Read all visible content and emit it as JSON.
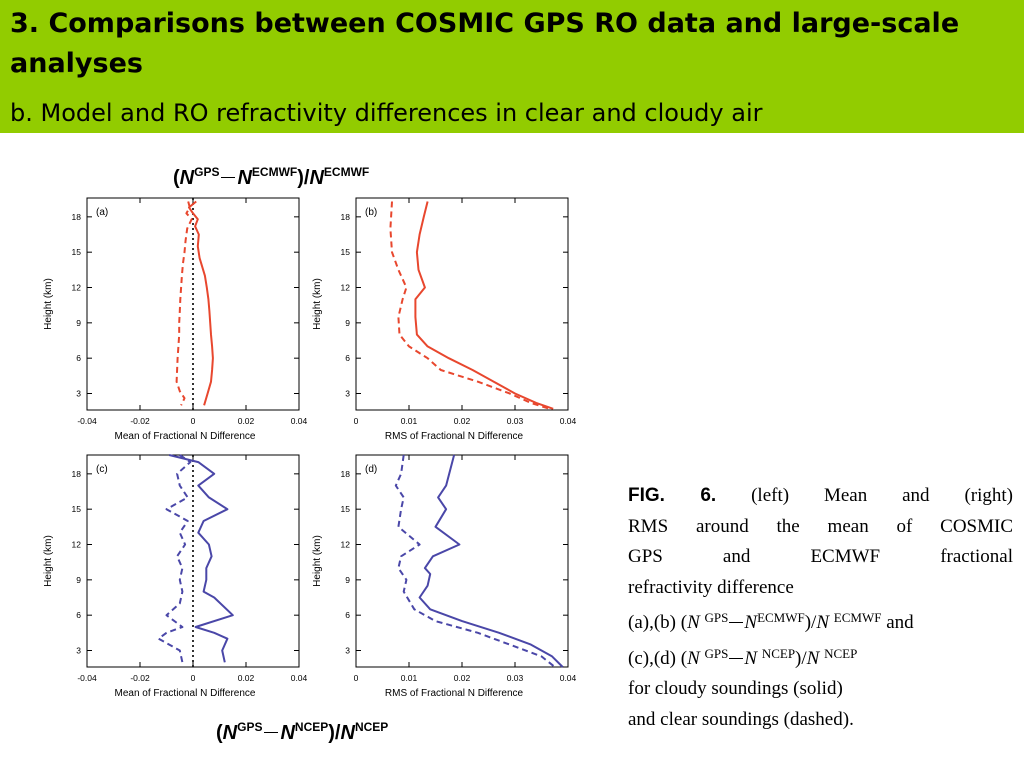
{
  "banner": {
    "title": "3. Comparisons between COSMIC GPS RO data and large-scale analyses",
    "subtitle": "b. Model and RO refractivity differences in clear and cloudy air"
  },
  "equation_top": {
    "n": "N",
    "gps": "GPS",
    "ref": "ECMWF"
  },
  "equation_bottom": {
    "n": "N",
    "gps": "GPS",
    "ref": "NCEP"
  },
  "caption": {
    "fig_label": "FIG. 6.",
    "line1_rest": "(left) Mean and (right)",
    "line2": "RMS around the mean of COSMIC",
    "line3": "GPS and ECMWF fractional",
    "line4": "refractivity difference",
    "ab": "(a),(b) (",
    "cd": "(c),(d) (",
    "n": "N",
    "gps": "GPS",
    "ecmwf": "ECMWF",
    "ncep": "NCEP",
    "and": "and",
    "line7": "for cloudy soundings (solid)",
    "line8": "and clear soundings (dashed)."
  },
  "chart_data": [
    {
      "panel": "(a)",
      "type": "line",
      "xlabel": "Mean of Fractional N Difference",
      "ylabel": "Height (km)",
      "xlim": [
        -0.04,
        0.04
      ],
      "ylim": [
        1.6,
        19.6
      ],
      "xticks": [
        -0.04,
        -0.02,
        0,
        0.02,
        0.04
      ],
      "xtick_labels": [
        "-0.04",
        "-0.02",
        "0",
        "0.02",
        "0.04"
      ],
      "yticks": [
        3,
        6,
        9,
        12,
        15,
        18
      ],
      "ytick_labels": [
        "3",
        "6",
        "9",
        "12",
        "15",
        "18"
      ],
      "zero_line": true,
      "color": "#e8472e",
      "series": [
        {
          "style": "solid",
          "points": [
            [
              0.0012,
              19.3
            ],
            [
              -0.0015,
              18.8
            ],
            [
              0.0,
              18.3
            ],
            [
              0.0018,
              17.8
            ],
            [
              0.0008,
              17.2
            ],
            [
              0.0022,
              16.5
            ],
            [
              0.0018,
              15.5
            ],
            [
              0.0025,
              14.5
            ],
            [
              0.0045,
              13.0
            ],
            [
              0.0052,
              12.0
            ],
            [
              0.0058,
              11.0
            ],
            [
              0.0062,
              10.0
            ],
            [
              0.0065,
              9.0
            ],
            [
              0.0068,
              8.0
            ],
            [
              0.0072,
              7.0
            ],
            [
              0.0075,
              6.0
            ],
            [
              0.0072,
              5.0
            ],
            [
              0.0068,
              4.0
            ],
            [
              0.0055,
              3.0
            ],
            [
              0.0042,
              2.0
            ]
          ]
        },
        {
          "style": "dashed",
          "points": [
            [
              -0.0018,
              19.3
            ],
            [
              -0.0012,
              18.8
            ],
            [
              -0.0025,
              18.3
            ],
            [
              -0.0005,
              17.8
            ],
            [
              -0.0022,
              17.0
            ],
            [
              -0.0028,
              16.0
            ],
            [
              -0.0032,
              15.0
            ],
            [
              -0.0038,
              14.0
            ],
            [
              -0.0042,
              13.0
            ],
            [
              -0.0045,
              12.0
            ],
            [
              -0.0048,
              11.0
            ],
            [
              -0.005,
              10.0
            ],
            [
              -0.0052,
              9.0
            ],
            [
              -0.0052,
              8.0
            ],
            [
              -0.0055,
              7.0
            ],
            [
              -0.0058,
              6.0
            ],
            [
              -0.006,
              5.0
            ],
            [
              -0.0062,
              4.0
            ],
            [
              -0.005,
              3.2
            ],
            [
              -0.0032,
              2.6
            ],
            [
              -0.0045,
              2.0
            ]
          ]
        }
      ]
    },
    {
      "panel": "(b)",
      "type": "line",
      "xlabel": "RMS of Fractional N Difference",
      "ylabel": "Height (km)",
      "xlim": [
        0,
        0.04
      ],
      "ylim": [
        1.6,
        19.6
      ],
      "xticks": [
        0,
        0.01,
        0.02,
        0.03,
        0.04
      ],
      "xtick_labels": [
        "0",
        "0.01",
        "0.02",
        "0.03",
        "0.04"
      ],
      "yticks": [
        3,
        6,
        9,
        12,
        15,
        18
      ],
      "ytick_labels": [
        "3",
        "6",
        "9",
        "12",
        "15",
        "18"
      ],
      "zero_line": false,
      "color": "#e8472e",
      "series": [
        {
          "style": "solid",
          "points": [
            [
              0.0135,
              19.3
            ],
            [
              0.0128,
              18.0
            ],
            [
              0.012,
              16.5
            ],
            [
              0.0115,
              15.0
            ],
            [
              0.0118,
              13.5
            ],
            [
              0.013,
              12.0
            ],
            [
              0.0112,
              11.0
            ],
            [
              0.0112,
              9.5
            ],
            [
              0.0115,
              8.0
            ],
            [
              0.0135,
              7.0
            ],
            [
              0.0175,
              6.0
            ],
            [
              0.022,
              5.0
            ],
            [
              0.026,
              4.0
            ],
            [
              0.03,
              3.0
            ],
            [
              0.034,
              2.2
            ],
            [
              0.0372,
              1.7
            ]
          ]
        },
        {
          "style": "dashed",
          "points": [
            [
              0.0068,
              19.3
            ],
            [
              0.0065,
              17.0
            ],
            [
              0.0068,
              15.0
            ],
            [
              0.008,
              13.5
            ],
            [
              0.0095,
              12.0
            ],
            [
              0.0088,
              11.0
            ],
            [
              0.008,
              9.5
            ],
            [
              0.0082,
              8.0
            ],
            [
              0.01,
              7.0
            ],
            [
              0.0135,
              6.0
            ],
            [
              0.016,
              5.0
            ],
            [
              0.023,
              4.0
            ],
            [
              0.029,
              3.0
            ],
            [
              0.033,
              2.2
            ],
            [
              0.0365,
              1.7
            ]
          ]
        }
      ]
    },
    {
      "panel": "(c)",
      "type": "line",
      "xlabel": "Mean of Fractional N Difference",
      "ylabel": "Height (km)",
      "xlim": [
        -0.04,
        0.04
      ],
      "ylim": [
        1.6,
        19.6
      ],
      "xticks": [
        -0.04,
        -0.02,
        0,
        0.02,
        0.04
      ],
      "xtick_labels": [
        "-0.04",
        "-0.02",
        "0",
        "0.02",
        "0.04"
      ],
      "yticks": [
        3,
        6,
        9,
        12,
        15,
        18
      ],
      "ytick_labels": [
        "3",
        "6",
        "9",
        "12",
        "15",
        "18"
      ],
      "zero_line": true,
      "color": "#4a47a8",
      "series": [
        {
          "style": "solid",
          "points": [
            [
              -0.009,
              19.6
            ],
            [
              0.002,
              19.0
            ],
            [
              0.008,
              18.0
            ],
            [
              0.002,
              17.0
            ],
            [
              0.006,
              16.0
            ],
            [
              0.013,
              15.0
            ],
            [
              0.004,
              14.0
            ],
            [
              0.002,
              13.0
            ],
            [
              0.006,
              12.0
            ],
            [
              0.007,
              11.0
            ],
            [
              0.005,
              10.0
            ],
            [
              0.005,
              9.0
            ],
            [
              0.004,
              8.0
            ],
            [
              0.008,
              7.5
            ],
            [
              0.015,
              6.0
            ],
            [
              0.001,
              5.0
            ],
            [
              0.008,
              4.5
            ],
            [
              0.013,
              4.0
            ],
            [
              0.011,
              3.0
            ],
            [
              0.012,
              2.0
            ]
          ]
        },
        {
          "style": "dashed",
          "points": [
            [
              -0.005,
              19.6
            ],
            [
              -0.001,
              19.0
            ],
            [
              -0.006,
              18.0
            ],
            [
              -0.005,
              17.0
            ],
            [
              -0.002,
              16.0
            ],
            [
              -0.01,
              15.0
            ],
            [
              -0.002,
              14.0
            ],
            [
              -0.005,
              13.0
            ],
            [
              -0.003,
              12.0
            ],
            [
              -0.006,
              11.0
            ],
            [
              -0.004,
              10.0
            ],
            [
              -0.005,
              9.0
            ],
            [
              -0.004,
              8.0
            ],
            [
              -0.005,
              7.0
            ],
            [
              -0.01,
              6.0
            ],
            [
              -0.004,
              5.0
            ],
            [
              -0.01,
              4.5
            ],
            [
              -0.013,
              4.0
            ],
            [
              -0.005,
              3.0
            ],
            [
              -0.004,
              2.0
            ]
          ]
        }
      ]
    },
    {
      "panel": "(d)",
      "type": "line",
      "xlabel": "RMS of Fractional N Difference",
      "ylabel": "Height (km)",
      "xlim": [
        0,
        0.04
      ],
      "ylim": [
        1.6,
        19.6
      ],
      "xticks": [
        0,
        0.01,
        0.02,
        0.03,
        0.04
      ],
      "xtick_labels": [
        "0",
        "0.01",
        "0.02",
        "0.03",
        "0.04"
      ],
      "yticks": [
        3,
        6,
        9,
        12,
        15,
        18
      ],
      "ytick_labels": [
        "3",
        "6",
        "9",
        "12",
        "15",
        "18"
      ],
      "zero_line": false,
      "color": "#4a47a8",
      "series": [
        {
          "style": "solid",
          "points": [
            [
              0.0185,
              19.6
            ],
            [
              0.017,
              17.0
            ],
            [
              0.0155,
              16.0
            ],
            [
              0.017,
              15.0
            ],
            [
              0.015,
              13.5
            ],
            [
              0.0195,
              12.0
            ],
            [
              0.0145,
              11.0
            ],
            [
              0.013,
              10.0
            ],
            [
              0.014,
              9.5
            ],
            [
              0.0135,
              8.5
            ],
            [
              0.012,
              7.5
            ],
            [
              0.014,
              6.5
            ],
            [
              0.02,
              5.5
            ],
            [
              0.027,
              4.5
            ],
            [
              0.033,
              3.5
            ],
            [
              0.037,
              2.5
            ],
            [
              0.039,
              1.6
            ]
          ]
        },
        {
          "style": "dashed",
          "points": [
            [
              0.009,
              19.6
            ],
            [
              0.0085,
              18.0
            ],
            [
              0.0075,
              17.0
            ],
            [
              0.009,
              16.0
            ],
            [
              0.0085,
              15.0
            ],
            [
              0.008,
              13.5
            ],
            [
              0.012,
              12.0
            ],
            [
              0.0085,
              11.0
            ],
            [
              0.008,
              10.0
            ],
            [
              0.0095,
              9.0
            ],
            [
              0.009,
              8.0
            ],
            [
              0.011,
              6.5
            ],
            [
              0.015,
              5.5
            ],
            [
              0.023,
              4.5
            ],
            [
              0.029,
              3.5
            ],
            [
              0.035,
              2.5
            ],
            [
              0.0375,
              1.6
            ]
          ]
        }
      ]
    }
  ]
}
